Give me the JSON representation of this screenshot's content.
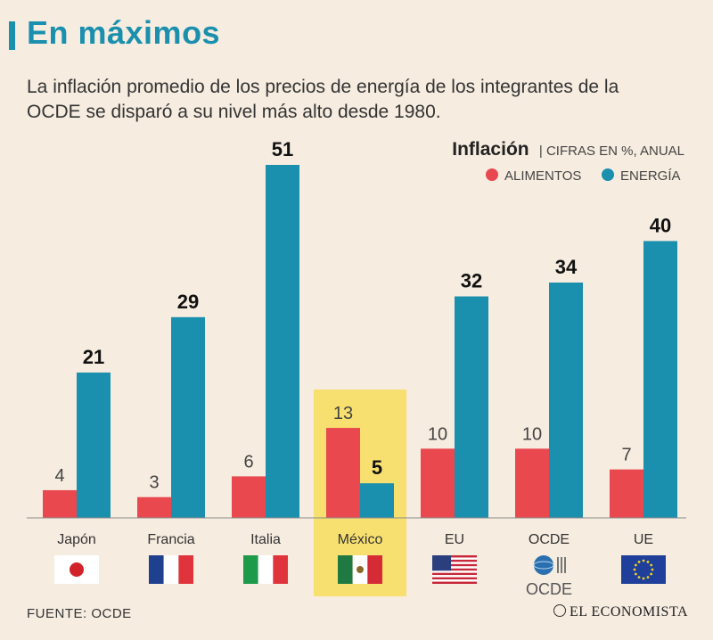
{
  "header": {
    "title": "En máximos",
    "subtitle": "La inflación promedio de los precios de energía de los integrantes de la OCDE se disparó a su nivel más alto desde 1980."
  },
  "legend": {
    "title_bold": "Inflación",
    "title_rest": "| CIFRAS EN %, ANUAL",
    "items": [
      {
        "label": "ALIMENTOS",
        "color": "#e9484f"
      },
      {
        "label": "ENERGÍA",
        "color": "#1a8fae"
      }
    ]
  },
  "chart_data": {
    "type": "bar",
    "categories": [
      "Japón",
      "Francia",
      "Italia",
      "México",
      "EU",
      "OCDE",
      "UE"
    ],
    "series": [
      {
        "name": "ALIMENTOS",
        "values": [
          4,
          3,
          6,
          13,
          10,
          10,
          7
        ]
      },
      {
        "name": "ENERGÍA",
        "values": [
          21,
          29,
          51,
          5,
          32,
          34,
          40
        ]
      }
    ],
    "highlight_category": "México",
    "ylim": [
      0,
      51
    ],
    "grid": false,
    "legend_position": "top-right"
  },
  "flags": [
    "japan-flag-icon",
    "france-flag-icon",
    "italy-flag-icon",
    "mexico-flag-icon",
    "usa-flag-icon",
    "oecd-logo-icon",
    "eu-flag-icon"
  ],
  "oecd_logo_text": "OCDE",
  "footer": {
    "source": "FUENTE:  OCDE",
    "logo": "EL ECONOMISTA"
  },
  "colors": {
    "food": "#e9484f",
    "energy": "#1a8fae",
    "highlight": "#f8e070",
    "background": "#f6ece0"
  }
}
